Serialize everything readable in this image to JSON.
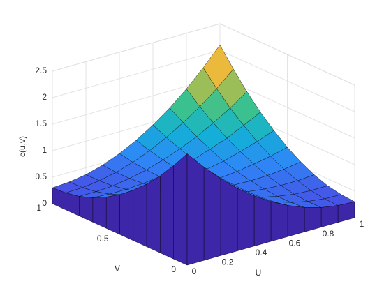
{
  "chart_data": {
    "type": "surface",
    "xlabel": "U",
    "ylabel": "V",
    "zlabel": "c(u,v)",
    "x": [
      0,
      0.1,
      0.2,
      0.3,
      0.4,
      0.5,
      0.6,
      0.7,
      0.8,
      0.9,
      1
    ],
    "y": [
      0,
      0.1,
      0.2,
      0.3,
      0.4,
      0.5,
      0.6,
      0.7,
      0.8,
      0.9,
      1
    ],
    "z": [
      [
        2.1,
        1.76,
        1.45,
        1.18,
        0.95,
        0.75,
        0.59,
        0.46,
        0.37,
        0.32,
        0.3
      ],
      [
        1.76,
        1.48,
        1.23,
        1.02,
        0.83,
        0.67,
        0.54,
        0.44,
        0.37,
        0.33,
        0.32
      ],
      [
        1.45,
        1.23,
        1.04,
        0.87,
        0.73,
        0.61,
        0.51,
        0.44,
        0.39,
        0.37,
        0.37
      ],
      [
        1.18,
        1.02,
        0.87,
        0.75,
        0.64,
        0.56,
        0.5,
        0.46,
        0.44,
        0.44,
        0.46
      ],
      [
        0.95,
        0.83,
        0.73,
        0.64,
        0.58,
        0.53,
        0.51,
        0.5,
        0.51,
        0.54,
        0.59
      ],
      [
        0.75,
        0.67,
        0.61,
        0.56,
        0.53,
        0.53,
        0.53,
        0.56,
        0.61,
        0.67,
        0.75
      ],
      [
        0.59,
        0.54,
        0.51,
        0.5,
        0.51,
        0.53,
        0.58,
        0.64,
        0.73,
        0.83,
        0.95
      ],
      [
        0.46,
        0.44,
        0.44,
        0.46,
        0.5,
        0.56,
        0.64,
        0.75,
        0.87,
        1.02,
        1.18
      ],
      [
        0.37,
        0.37,
        0.39,
        0.44,
        0.51,
        0.61,
        0.73,
        0.87,
        1.04,
        1.23,
        1.45
      ],
      [
        0.32,
        0.33,
        0.37,
        0.44,
        0.54,
        0.67,
        0.83,
        1.02,
        1.23,
        1.48,
        1.76
      ],
      [
        0.3,
        0.32,
        0.37,
        0.46,
        0.59,
        0.75,
        0.95,
        1.18,
        1.45,
        1.76,
        2.1
      ]
    ],
    "xlim": [
      0,
      1
    ],
    "ylim": [
      0,
      1
    ],
    "zlim": [
      0,
      2.5
    ],
    "xticks": [
      0,
      0.2,
      0.4,
      0.6,
      0.8,
      1
    ],
    "yticks": [
      0,
      0.5,
      1
    ],
    "zticks": [
      0,
      0.5,
      1,
      1.5,
      2,
      2.5
    ],
    "grid": true,
    "colormap": [
      "#3e26a8",
      "#4750e5",
      "#2e87f7",
      "#13b0d6",
      "#33c194",
      "#a4be55",
      "#f2b93a",
      "#f9fb15"
    ],
    "edgecolor": "#000000"
  }
}
